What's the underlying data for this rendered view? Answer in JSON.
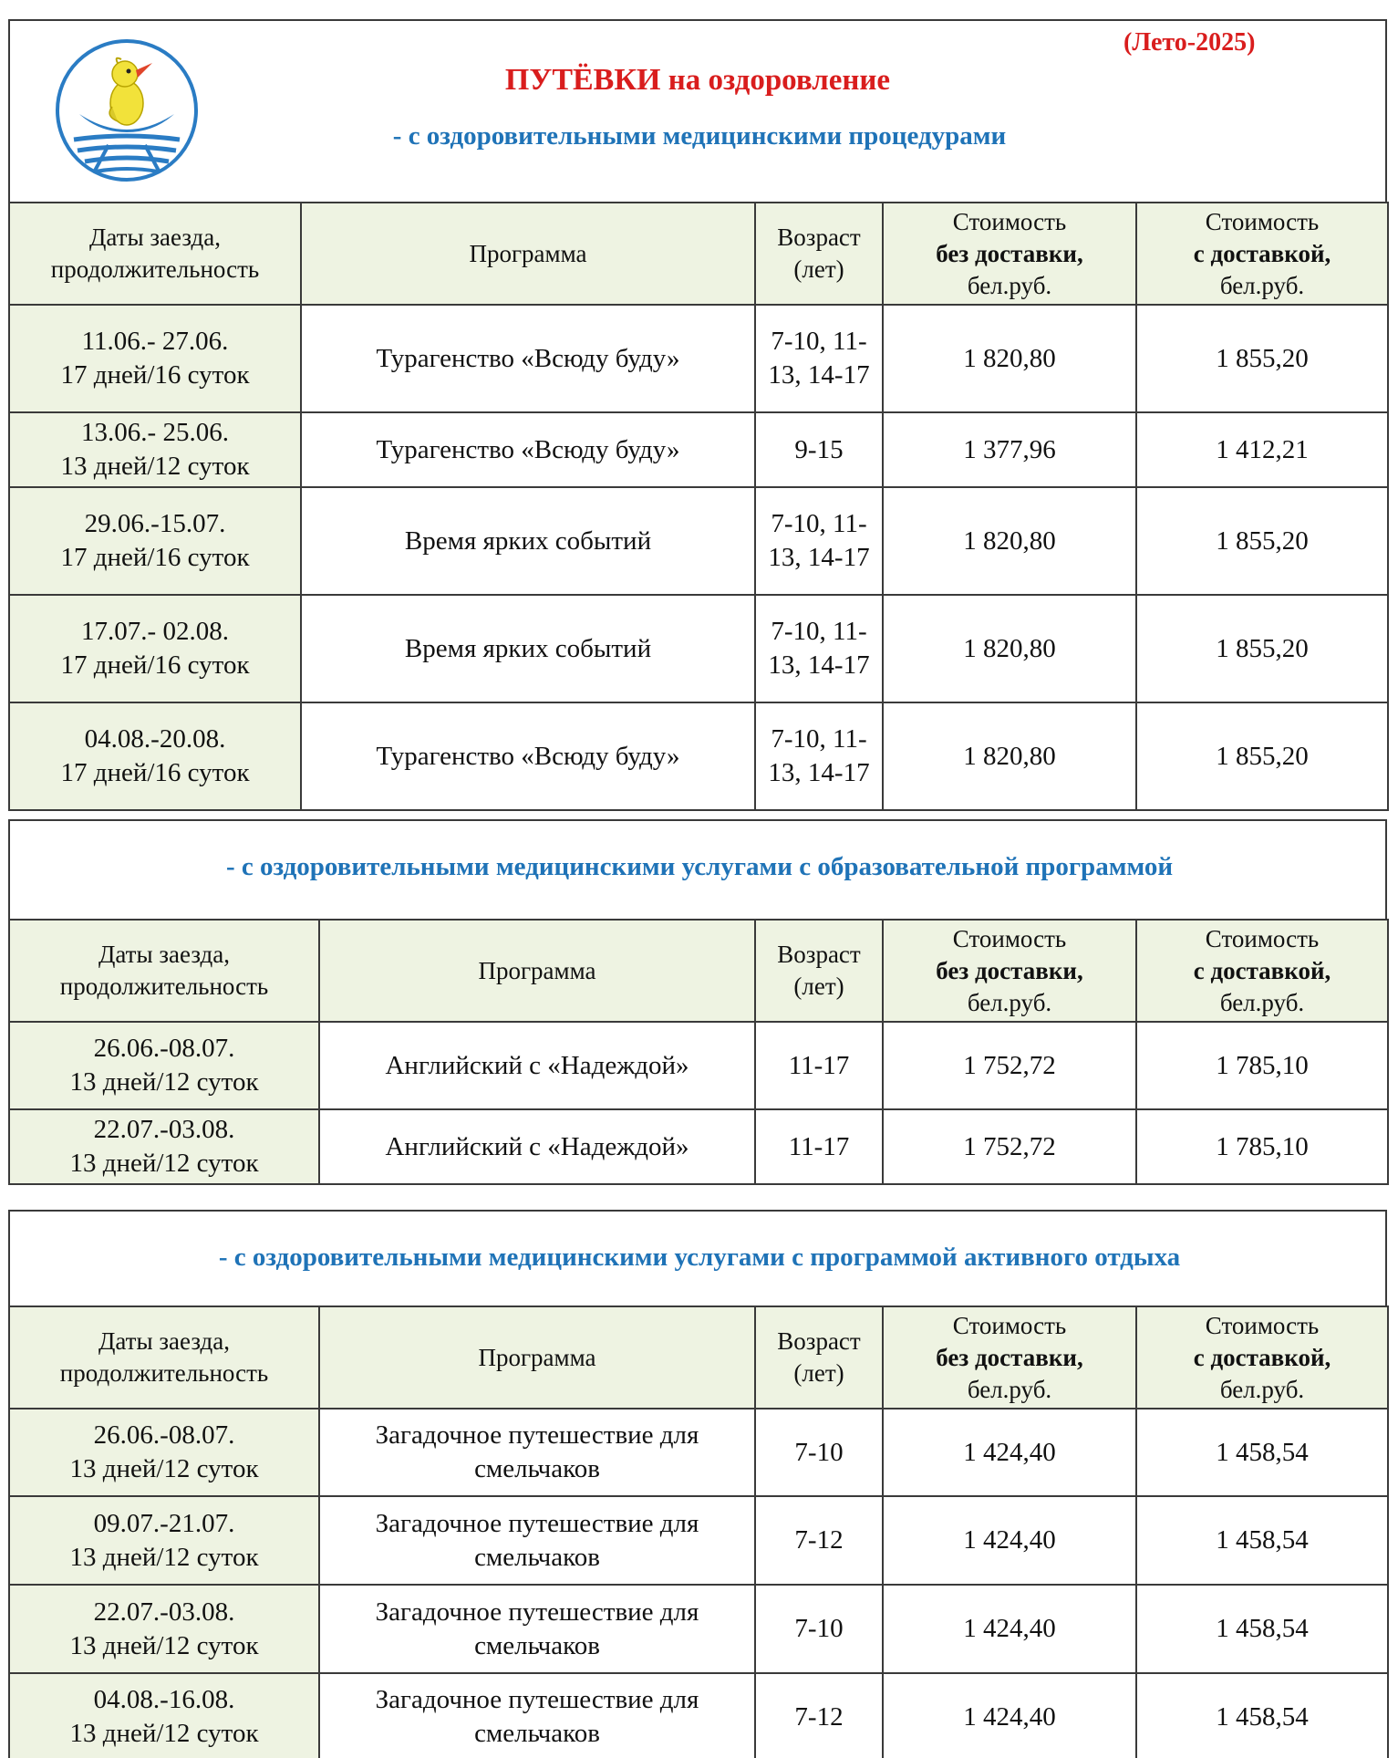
{
  "header": {
    "season": "(Лето-2025)",
    "title_bold": "ПУТЁВКИ",
    "title_rest": " на оздоровление",
    "subtitle": "- с оздоровительными медицинскими процедурами"
  },
  "columns": {
    "dates": "Даты заезда, продолжительность",
    "program": "Программа",
    "age_line1": "Возраст",
    "age_line2": "(лет)",
    "cost_word": "Стоимость",
    "no_delivery": "без доставки,",
    "with_delivery": "с доставкой,",
    "currency": "бел.руб."
  },
  "sections": [
    {
      "title": "- с оздоровительными медицинскими процедурами",
      "rows": [
        {
          "date": "11.06.- 27.06.",
          "duration": "17 дней/16 суток",
          "program": "Турагенство «Всюду буду»",
          "age": "7-10, 11-13, 14-17",
          "price_no_delivery": "1 820,80",
          "price_delivery": "1 855,20"
        },
        {
          "date": "13.06.- 25.06.",
          "duration": "13 дней/12 суток",
          "program": "Турагенство «Всюду буду»",
          "age": "9-15",
          "price_no_delivery": "1 377,96",
          "price_delivery": "1 412,21"
        },
        {
          "date": "29.06.-15.07.",
          "duration": "17  дней/16 суток",
          "program": "Время ярких событий",
          "age": "7-10, 11-13, 14-17",
          "price_no_delivery": "1 820,80",
          "price_delivery": "1 855,20"
        },
        {
          "date": "17.07.- 02.08.",
          "duration": "17 дней/16 суток",
          "program": "Время ярких событий",
          "age": "7-10, 11-13, 14-17",
          "price_no_delivery": "1 820,80",
          "price_delivery": "1 855,20"
        },
        {
          "date": "04.08.-20.08.",
          "duration": "17 дней/16 суток",
          "program": "Турагенство «Всюду буду»",
          "age": "7-10, 11-13, 14-17",
          "price_no_delivery": "1 820,80",
          "price_delivery": "1 855,20"
        }
      ]
    },
    {
      "title": "- с оздоровительными медицинскими услугами с образовательной программой",
      "rows": [
        {
          "date": "26.06.-08.07.",
          "duration": "13 дней/12 суток",
          "program": "Английский с «Надеждой»",
          "age": "11-17",
          "price_no_delivery": "1 752,72",
          "price_delivery": "1 785,10"
        },
        {
          "date": "22.07.-03.08.",
          "duration": "13 дней/12 суток",
          "program": "Английский с «Надеждой»",
          "age": "11-17",
          "price_no_delivery": "1 752,72",
          "price_delivery": "1 785,10"
        }
      ]
    },
    {
      "title": "- с оздоровительными медицинскими услугами с программой активного отдыха",
      "rows": [
        {
          "date": "26.06.-08.07.",
          "duration": "13 дней/12 суток",
          "program": "Загадочное путешествие для смельчаков",
          "age": "7-10",
          "price_no_delivery": "1 424,40",
          "price_delivery": "1 458,54"
        },
        {
          "date": "09.07.-21.07.",
          "duration": "13 дней/12 суток",
          "program": "Загадочное путешествие для смельчаков",
          "age": "7-12",
          "price_no_delivery": "1 424,40",
          "price_delivery": "1 458,54"
        },
        {
          "date": "22.07.-03.08.",
          "duration": "13 дней/12 суток",
          "program": "Загадочное путешествие для смельчаков",
          "age": "7-10",
          "price_no_delivery": "1 424,40",
          "price_delivery": "1 458,54"
        },
        {
          "date": "04.08.-16.08.",
          "duration": "13 дней/12 суток",
          "program": "Загадочное путешествие для смельчаков",
          "age": "7-12",
          "price_no_delivery": "1 424,40",
          "price_delivery": "1 458,54"
        }
      ]
    }
  ],
  "colors": {
    "title_red": "#d91d1d",
    "subtitle_blue": "#1f73b7",
    "header_bg": "#eef3e2"
  },
  "icons": {
    "logo": "bird-in-boat-logo-icon"
  }
}
